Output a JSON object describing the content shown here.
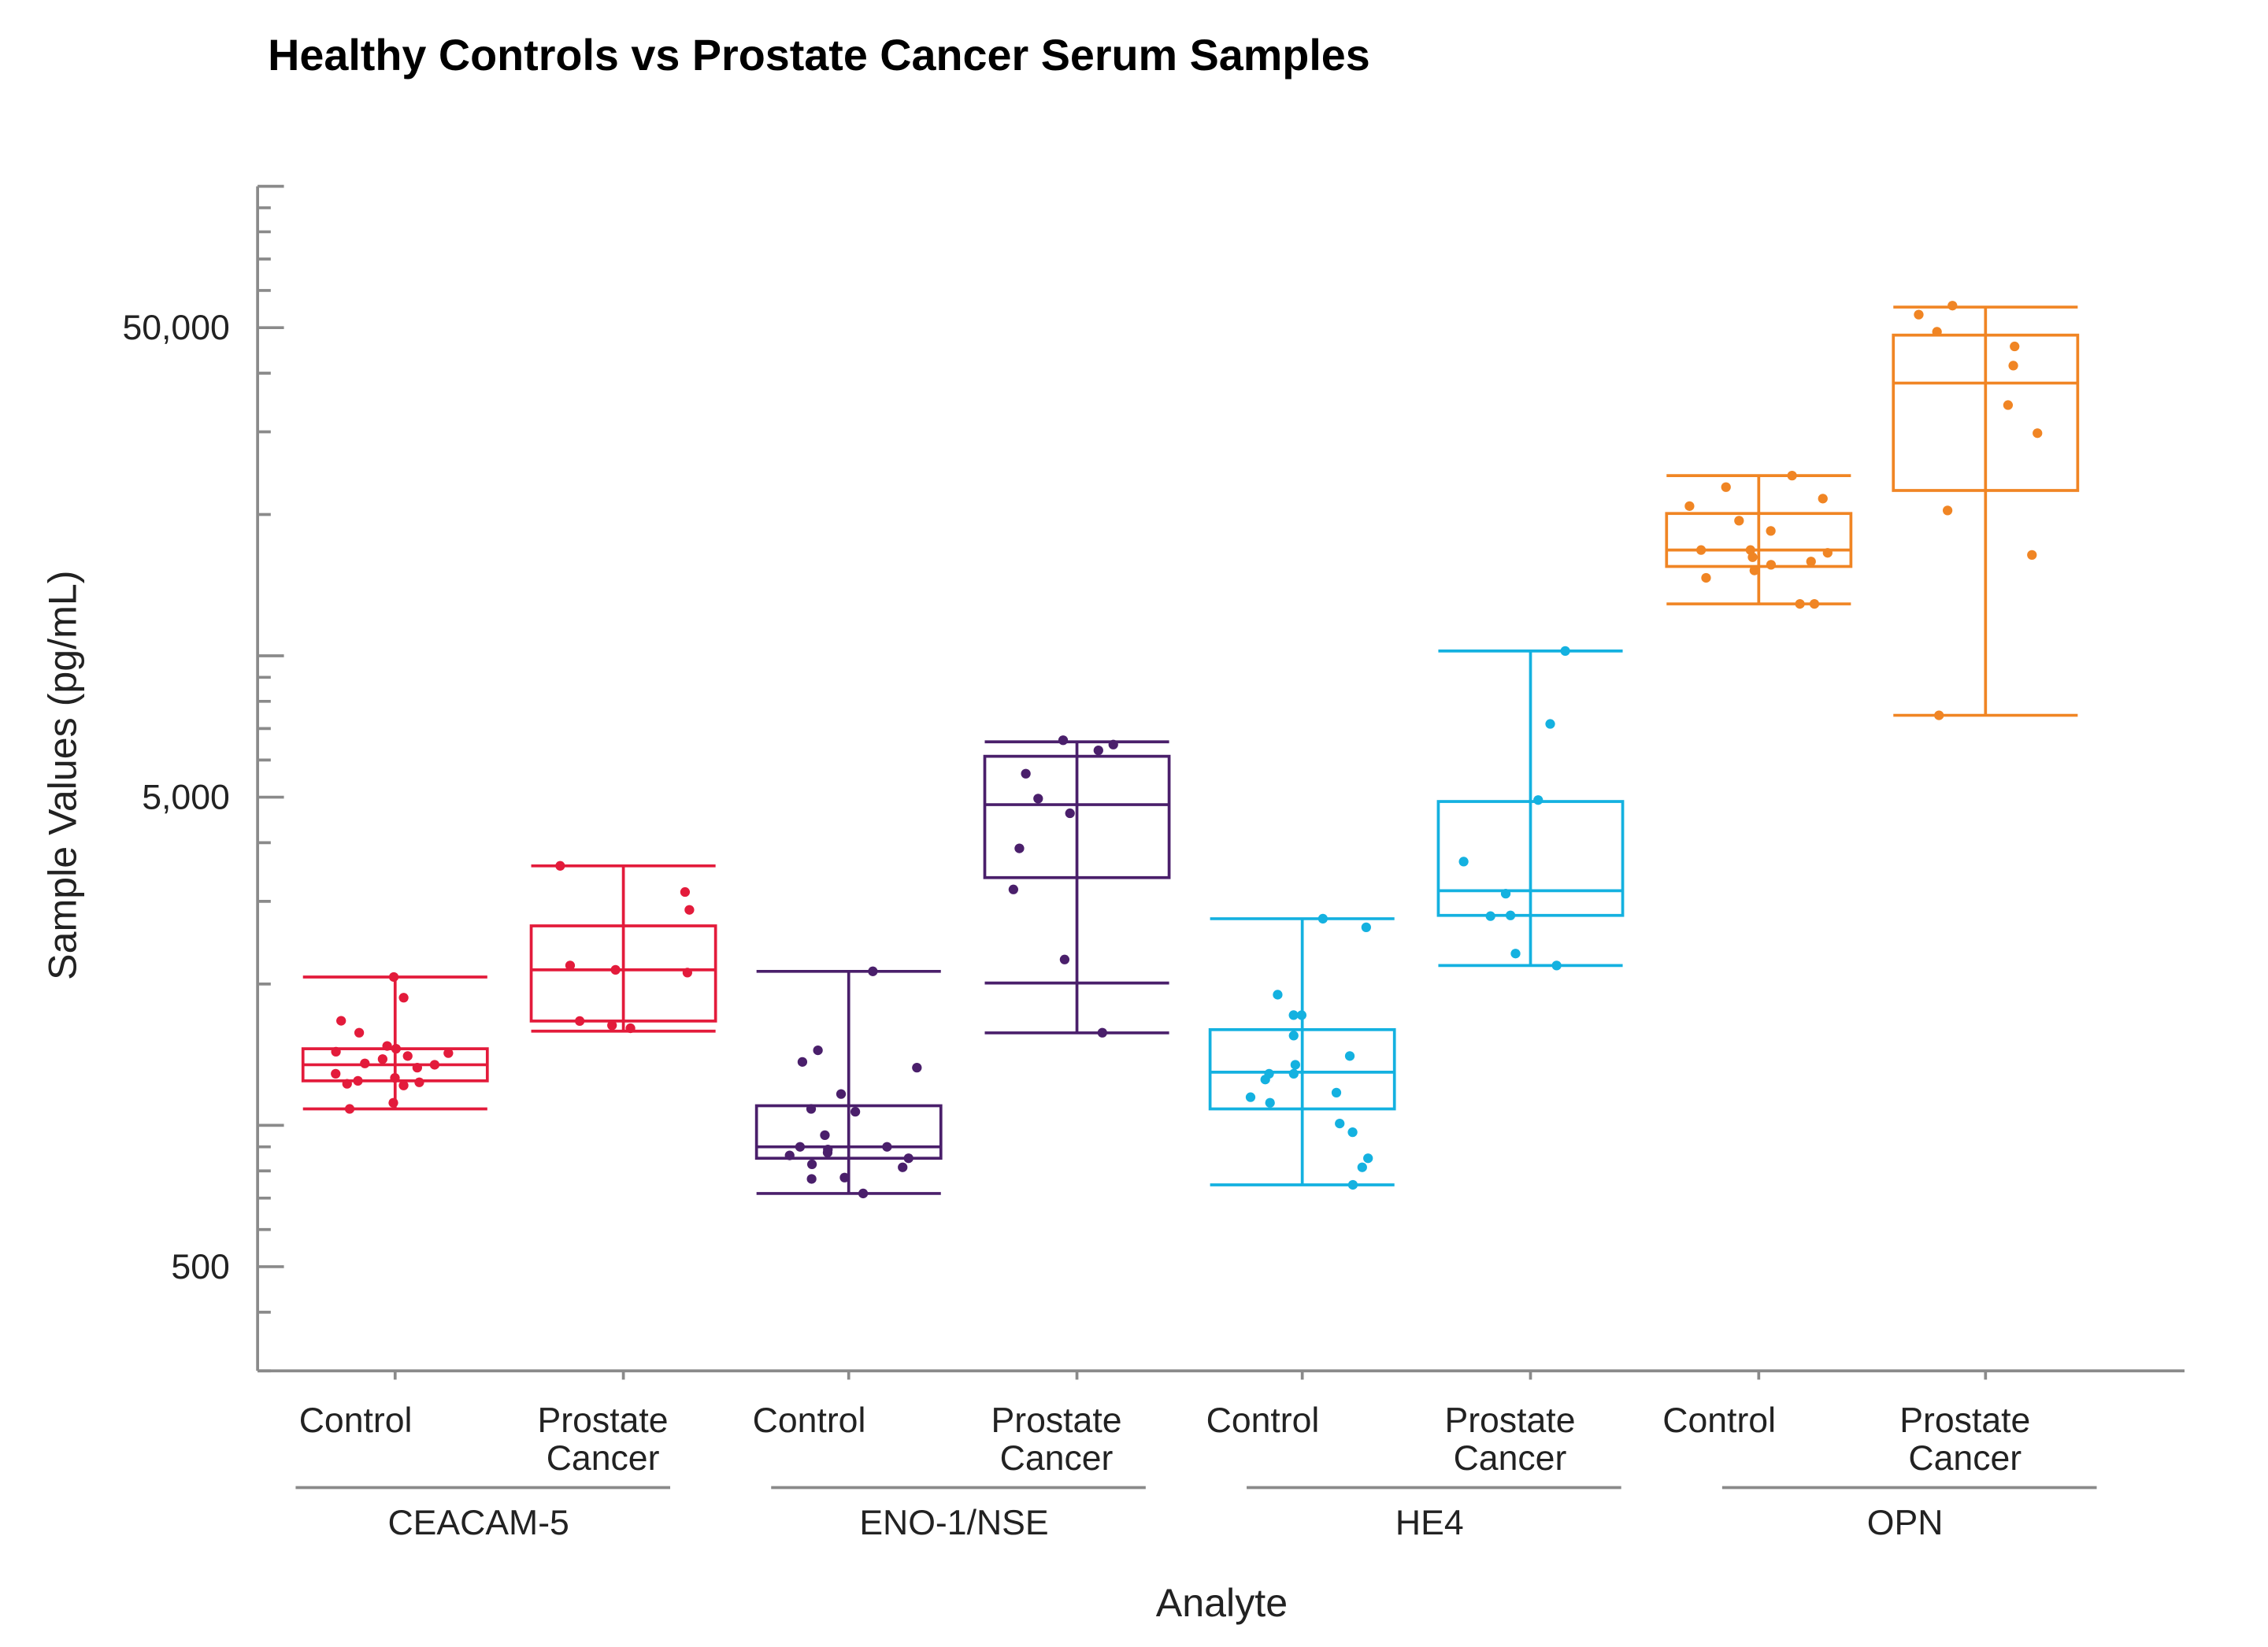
{
  "chart_data": {
    "type": "box",
    "title": "Healthy Controls vs Prostate Cancer Serum Samples",
    "xlabel": "Analyte",
    "ylabel": "Sample Values (pg/mL)",
    "yscale": "log",
    "ylim": [
      300,
      100000
    ],
    "yticks": [
      500,
      5000,
      50000
    ],
    "ytick_labels": [
      "500",
      "5,000",
      "50,000"
    ],
    "grid": false,
    "legend": "none",
    "subcategory_labels": {
      "control": "Control",
      "cancer_line1": "Prostate",
      "cancer_line2": "Cancer"
    },
    "groups": [
      {
        "analyte": "CEACAM-5",
        "color": "#e31b3b",
        "boxes": [
          {
            "category": "Control",
            "whisker_low": 1084,
            "q1": 1244,
            "median": 1346,
            "q3": 1456,
            "whisker_high": 2070,
            "points": [
              2070,
              1870,
              1670,
              1575,
              1476,
              1456,
              1435,
              1425,
              1405,
              1384,
              1355,
              1346,
              1327,
              1288,
              1262,
              1244,
              1235,
              1226,
              1216,
              1117,
              1084
            ]
          },
          {
            "category": "Prostate Cancer",
            "whisker_low": 1587,
            "q1": 1668,
            "median": 2144,
            "q3": 2660,
            "whisker_high": 3570,
            "points": [
              3570,
              3140,
              2877,
              2190,
              2144,
              2115,
              1668,
              1633,
              1610
            ]
          }
        ]
      },
      {
        "analyte": "ENO-1/NSE",
        "color": "#4a1f6b",
        "boxes": [
          {
            "category": "Control",
            "whisker_low": 716,
            "q1": 851,
            "median": 900,
            "q3": 1101,
            "whisker_high": 2128,
            "points": [
              2128,
              1445,
              1365,
              1327,
              1166,
              1084,
              1069,
              953,
              900,
              900,
              888,
              875,
              863,
              851,
              826,
              814,
              774,
              769,
              716
            ]
          },
          {
            "category": "Prostate Cancer",
            "whisker_low": 1574,
            "q1": 3370,
            "median": 4820,
            "q3": 6110,
            "whisker_high": 6560,
            "extra_line": 2010,
            "points": [
              6610,
              6470,
              6290,
              5610,
              4965,
              4620,
              3890,
              3180,
              2255,
              1575
            ]
          }
        ]
      },
      {
        "analyte": "HE4",
        "color": "#14b1e0",
        "boxes": [
          {
            "category": "Control",
            "whisker_low": 747,
            "q1": 1084,
            "median": 1298,
            "q3": 1599,
            "whisker_high": 2755,
            "points": [
              2755,
              2641,
              1898,
              1717,
              1717,
              1553,
              1405,
              1346,
              1288,
              1288,
              1252,
              1174,
              1148,
              1117,
              1009,
              967,
              851,
              814,
              747
            ]
          },
          {
            "category": "Prostate Cancer",
            "whisker_low": 2190,
            "q1": 2800,
            "median": 3160,
            "q3": 4895,
            "whisker_high": 10240,
            "points": [
              10240,
              7160,
              4930,
              3645,
              3115,
              2800,
              2790,
              2322,
              2190
            ]
          }
        ]
      },
      {
        "analyte": "OPN",
        "color": "#f08524",
        "boxes": [
          {
            "category": "Control",
            "whisker_low": 12900,
            "q1": 15500,
            "median": 16800,
            "q3": 20100,
            "whisker_high": 24200,
            "points": [
              24200,
              22870,
              21620,
              20840,
              19400,
              18450,
              16800,
              16800,
              16570,
              16220,
              15880,
              15630,
              15200,
              14660,
              12900,
              12900
            ]
          },
          {
            "category": "Prostate Cancer",
            "whisker_low": 7470,
            "q1": 22500,
            "median": 38100,
            "q3": 48200,
            "whisker_high": 55300,
            "points": [
              55700,
              53300,
              49000,
              45600,
              41500,
              34200,
              29800,
              20400,
              16400,
              7470
            ]
          }
        ]
      }
    ]
  }
}
